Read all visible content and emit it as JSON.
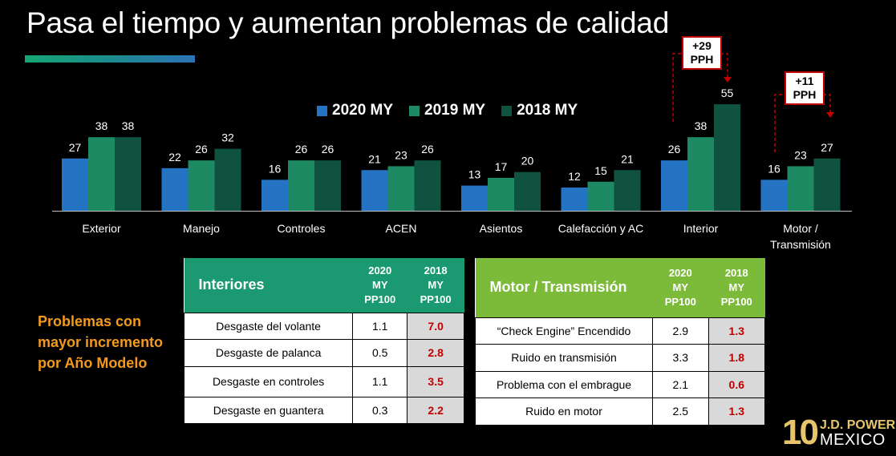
{
  "title": "Pasa el tiempo y aumentan problemas de calidad",
  "colors": {
    "s2020": "#2474c3",
    "s2019": "#1e8a63",
    "s2018": "#0f5240",
    "accent_red": "#c00000",
    "callout_orange": "#f39a1e",
    "table_green": "#1b9a72",
    "table_lime": "#7cbb3a"
  },
  "chart_data": {
    "type": "bar",
    "title": "",
    "xlabel": "",
    "ylabel": "",
    "ylim": [
      0,
      60
    ],
    "grid": false,
    "legend_position": "top-center",
    "categories": [
      "Exterior",
      "Manejo",
      "Controles",
      "ACEN",
      "Asientos",
      "Calefacción y AC",
      "Interior",
      "Motor /\nTransmisión"
    ],
    "series": [
      {
        "name": "2020 MY",
        "color": "#2474c3",
        "values": [
          27,
          22,
          16,
          21,
          13,
          12,
          26,
          16
        ]
      },
      {
        "name": "2019 MY",
        "color": "#1e8a63",
        "values": [
          38,
          26,
          26,
          23,
          17,
          15,
          38,
          23
        ]
      },
      {
        "name": "2018 MY",
        "color": "#0f5240",
        "values": [
          38,
          32,
          26,
          26,
          20,
          21,
          55,
          27
        ]
      }
    ],
    "annotations": [
      {
        "category": "Interior",
        "text": [
          "+29",
          "PPH"
        ]
      },
      {
        "category": "Motor /\nTransmisión",
        "text": [
          "+11",
          "PPH"
        ]
      }
    ]
  },
  "callout": "Problemas con mayor incremento por Año Modelo",
  "table_interiores": {
    "title": "Interiores",
    "col1": [
      "2020",
      "MY",
      "PP100"
    ],
    "col2": [
      "2018",
      "MY",
      "PP100"
    ],
    "rows": [
      {
        "label": "Desgaste del volante",
        "v2020": "1.1",
        "v2018": "7.0"
      },
      {
        "label": "Desgaste de palanca",
        "v2020": "0.5",
        "v2018": "2.8"
      },
      {
        "label": "Desgaste en controles",
        "v2020": "1.1",
        "v2018": "3.5"
      },
      {
        "label": "Desgaste en guantera",
        "v2020": "0.3",
        "v2018": "2.2"
      }
    ]
  },
  "table_motor": {
    "title": "Motor / Transmisión",
    "col1": [
      "2020",
      "MY",
      "PP100"
    ],
    "col2": [
      "2018",
      "MY",
      "PP100"
    ],
    "rows": [
      {
        "label": "“Check Engine” Encendido",
        "v2020": "2.9",
        "v2018": "1.3"
      },
      {
        "label": "Ruido en transmisión",
        "v2020": "3.3",
        "v2018": "1.8"
      },
      {
        "label": "Problema con el embrague",
        "v2020": "2.1",
        "v2018": "0.6"
      },
      {
        "label": "Ruido en motor",
        "v2020": "2.5",
        "v2018": "1.3"
      }
    ]
  },
  "logo": {
    "number": "10",
    "brand": "J.D. POWER",
    "region": "MEXICO"
  }
}
